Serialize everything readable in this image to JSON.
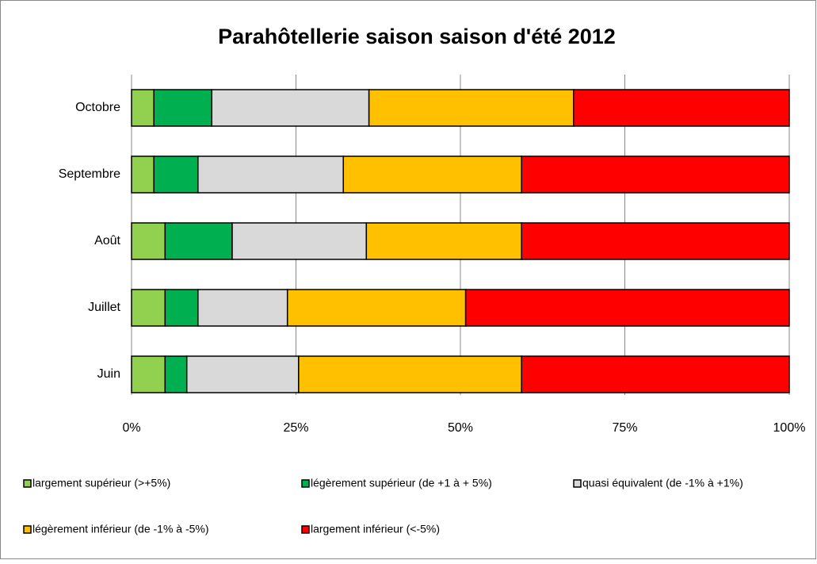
{
  "chart_data": {
    "type": "stacked-bar-horizontal",
    "title": "Parahôtellerie saison saison d'été 2012",
    "categories": [
      "Octobre",
      "Septembre",
      "Août",
      "Juillet",
      "Juin"
    ],
    "series": [
      {
        "name": "largement supérieur (>+5%)",
        "color": "#92d050",
        "values": [
          3.4,
          3.4,
          5.1,
          5.1,
          5.1
        ]
      },
      {
        "name": "légèrement supérieur (de +1 à + 5%)",
        "color": "#00b050",
        "values": [
          8.8,
          6.7,
          10.2,
          5.0,
          3.3
        ]
      },
      {
        "name": "quasi équivalent (de -1% à +1%)",
        "color": "#d9d9d9",
        "values": [
          23.9,
          22.1,
          20.4,
          13.6,
          17.0
        ]
      },
      {
        "name": "légèrement inférieur (de -1% à -5%)",
        "color": "#ffc000",
        "values": [
          31.1,
          27.1,
          23.6,
          27.1,
          33.9
        ]
      },
      {
        "name": "largement inférieur (<-5%)",
        "color": "#ff0000",
        "values": [
          32.8,
          40.7,
          40.7,
          49.2,
          40.7
        ]
      }
    ],
    "xlim": [
      0,
      100
    ],
    "xticks": [
      {
        "value": 0,
        "label": "0%"
      },
      {
        "value": 25,
        "label": "25%"
      },
      {
        "value": 50,
        "label": "50%"
      },
      {
        "value": 75,
        "label": "75%"
      },
      {
        "value": 100,
        "label": "100%"
      }
    ],
    "grid": true,
    "legend": "bottom"
  }
}
